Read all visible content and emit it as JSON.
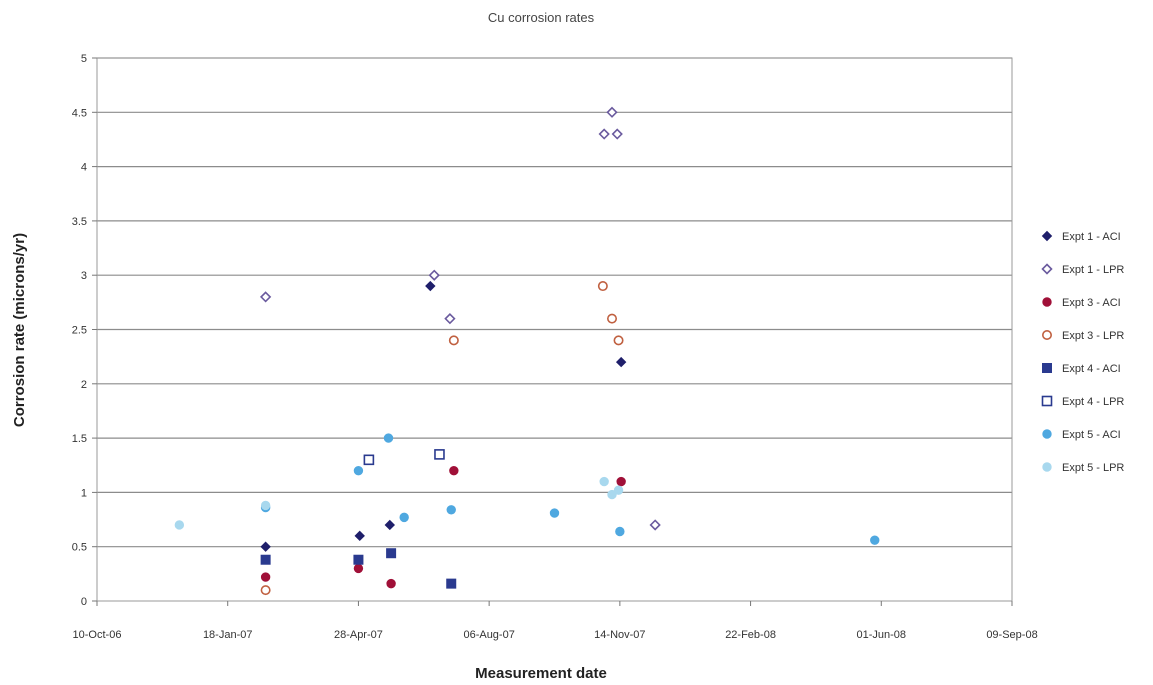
{
  "chart_data": {
    "type": "scatter",
    "title": "Cu corrosion rates",
    "xlabel": "Measurement date",
    "ylabel": "Corrosion rate (microns/yr)",
    "xlim": [
      "2006-10-10",
      "2008-09-09"
    ],
    "ylim": [
      0,
      5
    ],
    "x_ticks": [
      "2006-10-10",
      "2007-01-18",
      "2007-04-28",
      "2007-08-06",
      "2007-11-14",
      "2008-02-22",
      "2008-06-01",
      "2008-09-09"
    ],
    "x_tick_labels": [
      "10-Oct-06",
      "18-Jan-07",
      "28-Apr-07",
      "06-Aug-07",
      "14-Nov-07",
      "22-Feb-08",
      "01-Jun-08",
      "09-Sep-08"
    ],
    "y_ticks": [
      "0",
      "0.5",
      "1",
      "1.5",
      "2",
      "2.5",
      "3",
      "3.5",
      "4",
      "4.5",
      "5"
    ],
    "grid": "horizontal",
    "legend_position": "right",
    "series": [
      {
        "name": "Expt 1 - ACI",
        "marker": "diamond",
        "filled": true,
        "color": "#1f1f6b",
        "points": [
          [
            "2007-02-16",
            0.5
          ],
          [
            "2007-04-29",
            0.6
          ],
          [
            "2007-05-22",
            0.7
          ],
          [
            "2007-06-22",
            2.9
          ],
          [
            "2007-11-15",
            2.2
          ]
        ]
      },
      {
        "name": "Expt 1 - LPR",
        "marker": "diamond",
        "filled": false,
        "color": "#6a5a9e",
        "points": [
          [
            "2007-02-16",
            2.8
          ],
          [
            "2007-06-25",
            3.0
          ],
          [
            "2007-07-07",
            2.6
          ],
          [
            "2007-11-02",
            4.3
          ],
          [
            "2007-11-08",
            4.5
          ],
          [
            "2007-11-12",
            4.3
          ],
          [
            "2007-12-11",
            0.7
          ]
        ]
      },
      {
        "name": "Expt 3 - ACI",
        "marker": "circle",
        "filled": true,
        "color": "#a01038",
        "points": [
          [
            "2007-02-16",
            0.22
          ],
          [
            "2007-04-28",
            0.3
          ],
          [
            "2007-05-23",
            0.16
          ],
          [
            "2007-07-10",
            1.2
          ],
          [
            "2007-11-15",
            1.1
          ]
        ]
      },
      {
        "name": "Expt 3 - LPR",
        "marker": "circle",
        "filled": false,
        "color": "#c06040",
        "points": [
          [
            "2007-02-16",
            0.1
          ],
          [
            "2007-07-10",
            2.4
          ],
          [
            "2007-11-01",
            2.9
          ],
          [
            "2007-11-08",
            2.6
          ],
          [
            "2007-11-13",
            2.4
          ]
        ]
      },
      {
        "name": "Expt 4 - ACI",
        "marker": "square",
        "filled": true,
        "color": "#2a3a8f",
        "points": [
          [
            "2007-02-16",
            0.38
          ],
          [
            "2007-04-28",
            0.38
          ],
          [
            "2007-05-23",
            0.44
          ],
          [
            "2007-07-08",
            0.16
          ]
        ]
      },
      {
        "name": "Expt 4 - LPR",
        "marker": "square",
        "filled": false,
        "color": "#2a3a8f",
        "points": [
          [
            "2007-05-06",
            1.3
          ],
          [
            "2007-06-29",
            1.35
          ]
        ]
      },
      {
        "name": "Expt 5 - ACI",
        "marker": "circle",
        "filled": true,
        "color": "#4fa8e0",
        "points": [
          [
            "2007-02-16",
            0.86
          ],
          [
            "2007-04-28",
            1.2
          ],
          [
            "2007-05-21",
            1.5
          ],
          [
            "2007-06-02",
            0.77
          ],
          [
            "2007-07-08",
            0.84
          ],
          [
            "2007-09-25",
            0.81
          ],
          [
            "2007-11-14",
            0.64
          ],
          [
            "2008-05-27",
            0.56
          ]
        ]
      },
      {
        "name": "Expt 5 - LPR",
        "marker": "circle",
        "filled": true,
        "color": "#a8d8ee",
        "points": [
          [
            "2006-12-12",
            0.7
          ],
          [
            "2007-02-16",
            0.88
          ],
          [
            "2007-11-02",
            1.1
          ],
          [
            "2007-11-08",
            0.98
          ],
          [
            "2007-11-13",
            1.02
          ]
        ]
      }
    ]
  }
}
